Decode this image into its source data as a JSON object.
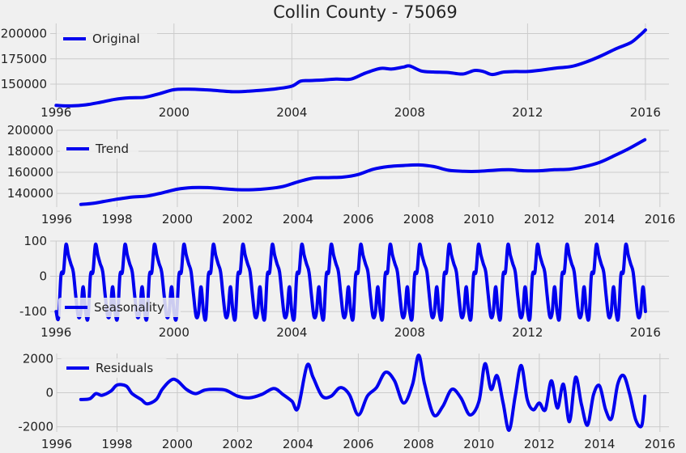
{
  "figure": {
    "title": "Collin County - 75069"
  },
  "colors": {
    "background": "#f0f0f0",
    "grid": "#cbcbcb",
    "line": "#0000ee",
    "text": "#222222"
  },
  "chart_data": [
    {
      "type": "line",
      "legend": "Original",
      "legend_position": "top-left",
      "grid": true,
      "xlim": [
        1995.8,
        2016.8
      ],
      "ylim": [
        134000,
        210000
      ],
      "xticks": [
        1996,
        2000,
        2004,
        2008,
        2012,
        2016
      ],
      "yticks": [
        150000,
        175000,
        200000
      ],
      "x": [
        1996.0,
        1996.5,
        1997.0,
        1997.5,
        1998.0,
        1998.5,
        1999.0,
        1999.5,
        2000.0,
        2000.5,
        2001.0,
        2001.5,
        2002.0,
        2002.5,
        2003.0,
        2003.5,
        2004.0,
        2004.3,
        2004.6,
        2005.0,
        2005.5,
        2006.0,
        2006.5,
        2007.0,
        2007.4,
        2007.8,
        2008.0,
        2008.4,
        2008.8,
        2009.3,
        2009.8,
        2010.2,
        2010.5,
        2010.8,
        2011.2,
        2011.6,
        2012.0,
        2012.5,
        2013.0,
        2013.5,
        2014.0,
        2014.5,
        2015.0,
        2015.5,
        2015.8,
        2016.0
      ],
      "values": [
        129000,
        128500,
        129500,
        132000,
        135000,
        136500,
        137000,
        140500,
        144500,
        145000,
        144500,
        143500,
        142500,
        143000,
        144000,
        145500,
        148000,
        153000,
        153500,
        154000,
        155000,
        155000,
        161000,
        165500,
        165000,
        167000,
        168000,
        163000,
        162000,
        161500,
        160000,
        163500,
        162500,
        159500,
        162000,
        162500,
        162500,
        164000,
        166000,
        167500,
        172000,
        178000,
        185000,
        191000,
        198000,
        203500
      ]
    },
    {
      "type": "line",
      "legend": "Trend",
      "legend_position": "top-left",
      "grid": true,
      "xlim": [
        1996,
        2016.3
      ],
      "ylim": [
        127000,
        200000
      ],
      "xticks": [
        1996,
        1998,
        2000,
        2002,
        2004,
        2006,
        2008,
        2010,
        2012,
        2014,
        2016
      ],
      "yticks": [
        140000,
        160000,
        180000,
        200000
      ],
      "x": [
        1996.8,
        1997.2,
        1997.6,
        1998.0,
        1998.5,
        1999.0,
        1999.5,
        2000.0,
        2000.5,
        2001.0,
        2001.5,
        2002.0,
        2002.5,
        2003.0,
        2003.5,
        2004.0,
        2004.5,
        2005.0,
        2005.5,
        2006.0,
        2006.5,
        2007.0,
        2007.5,
        2008.0,
        2008.5,
        2009.0,
        2009.5,
        2010.0,
        2010.5,
        2011.0,
        2011.5,
        2012.0,
        2012.5,
        2013.0,
        2013.5,
        2014.0,
        2014.5,
        2015.0,
        2015.5
      ],
      "values": [
        129500,
        130500,
        132500,
        134500,
        136500,
        137500,
        140500,
        144000,
        145500,
        145500,
        144500,
        143500,
        143500,
        144500,
        146500,
        151000,
        154500,
        155000,
        155500,
        158000,
        163000,
        165500,
        166500,
        167000,
        165500,
        162000,
        161000,
        161000,
        162000,
        162500,
        161500,
        161500,
        162500,
        163000,
        165500,
        169500,
        176000,
        183000,
        191000
      ]
    },
    {
      "type": "line",
      "legend": "Seasonality",
      "legend_position": "bottom-left",
      "grid": true,
      "xlim": [
        1995.8,
        2016.8
      ],
      "ylim": [
        -125,
        100
      ],
      "xticks": [
        1996,
        2000,
        2004,
        2008,
        2012,
        2016
      ],
      "yticks": [
        -100,
        0,
        100
      ],
      "period_years": 1,
      "start": 1996.0,
      "end": 2016.0,
      "cycle_values": [
        -100,
        -118,
        3,
        12,
        90,
        60,
        35,
        12,
        -55,
        -113,
        -105,
        -30
      ]
    },
    {
      "type": "line",
      "legend": "Residuals",
      "legend_position": "top-left",
      "grid": true,
      "xlim": [
        1996,
        2016.3
      ],
      "ylim": [
        -2300,
        2300
      ],
      "xticks": [
        1996,
        1998,
        2000,
        2002,
        2004,
        2006,
        2008,
        2010,
        2012,
        2014,
        2016
      ],
      "yticks": [
        -2000,
        0,
        2000
      ],
      "x": [
        1996.8,
        1997.1,
        1997.3,
        1997.5,
        1997.8,
        1998.0,
        1998.3,
        1998.5,
        1998.8,
        1999.0,
        1999.3,
        1999.5,
        1999.8,
        2000.0,
        2000.3,
        2000.6,
        2000.9,
        2001.2,
        2001.6,
        2002.0,
        2002.4,
        2002.8,
        2003.2,
        2003.5,
        2003.8,
        2004.0,
        2004.3,
        2004.5,
        2004.8,
        2005.1,
        2005.4,
        2005.7,
        2006.0,
        2006.3,
        2006.6,
        2006.9,
        2007.2,
        2007.5,
        2007.8,
        2008.0,
        2008.2,
        2008.5,
        2008.8,
        2009.1,
        2009.4,
        2009.7,
        2010.0,
        2010.2,
        2010.4,
        2010.6,
        2010.8,
        2011.0,
        2011.2,
        2011.4,
        2011.6,
        2011.8,
        2012.0,
        2012.2,
        2012.4,
        2012.6,
        2012.8,
        2013.0,
        2013.2,
        2013.4,
        2013.6,
        2013.8,
        2014.0,
        2014.2,
        2014.4,
        2014.6,
        2014.8,
        2015.0,
        2015.2,
        2015.4,
        2015.5
      ],
      "values": [
        -400,
        -350,
        -50,
        -150,
        100,
        450,
        400,
        -50,
        -400,
        -650,
        -400,
        200,
        750,
        700,
        200,
        -50,
        150,
        200,
        150,
        -200,
        -300,
        -100,
        250,
        -100,
        -500,
        -900,
        1600,
        900,
        -200,
        -200,
        300,
        -100,
        -1300,
        -200,
        300,
        1200,
        700,
        -600,
        500,
        2200,
        500,
        -1300,
        -800,
        200,
        -300,
        -1300,
        -500,
        1700,
        200,
        1000,
        -600,
        -2200,
        -200,
        1600,
        -400,
        -1000,
        -600,
        -1000,
        700,
        -900,
        500,
        -1700,
        900,
        -700,
        -1900,
        -100,
        400,
        -1000,
        -1500,
        500,
        1000,
        -100,
        -1600,
        -1900,
        -200
      ]
    }
  ]
}
